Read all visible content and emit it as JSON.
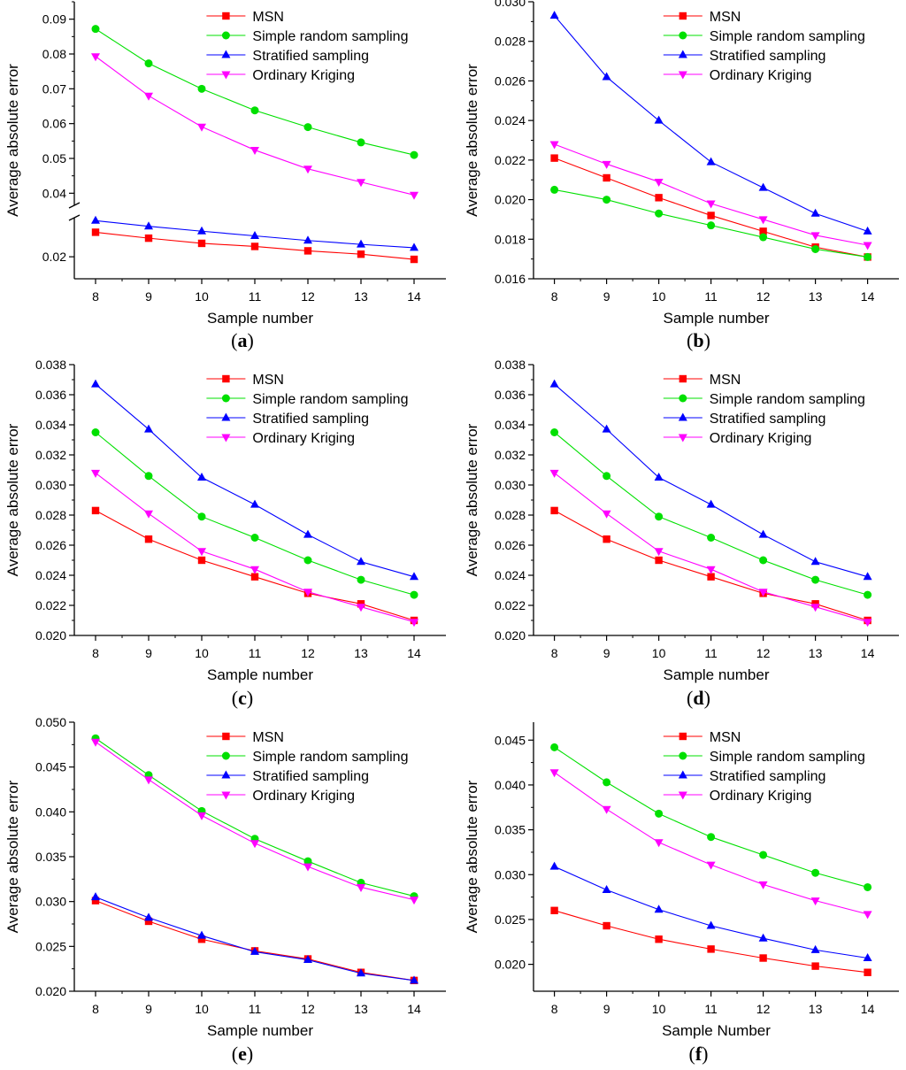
{
  "colors": {
    "MSN": "#ff0000",
    "Simple random sampling": "#00e000",
    "Stratified sampling": "#0000ff",
    "Ordinary Kriging": "#ff00ff",
    "axis": "#000000"
  },
  "chart_data": [
    {
      "type": "line",
      "caption": "a",
      "xlabel": "Sample number",
      "ylabel": "Average absolute error",
      "x": [
        8,
        9,
        10,
        11,
        12,
        13,
        14
      ],
      "yticks_lower": [
        "0.02"
      ],
      "yticks_upper": [
        "0.04",
        "0.05",
        "0.06",
        "0.07",
        "0.08",
        "0.09"
      ],
      "broken_axis": true,
      "series": [
        {
          "name": "MSN",
          "marker": "square",
          "values": [
            0.0295,
            0.0272,
            0.0252,
            0.024,
            0.0223,
            0.021,
            0.019
          ]
        },
        {
          "name": "Simple random sampling",
          "marker": "circle",
          "values": [
            0.0872,
            0.0773,
            0.07,
            0.0638,
            0.059,
            0.0546,
            0.051
          ]
        },
        {
          "name": "Stratified sampling",
          "marker": "triangle-up",
          "values": [
            0.034,
            0.0318,
            0.0299,
            0.0281,
            0.0263,
            0.0248,
            0.0235
          ]
        },
        {
          "name": "Ordinary Kriging",
          "marker": "triangle-down",
          "values": [
            0.0793,
            0.068,
            0.0591,
            0.0524,
            0.047,
            0.0432,
            0.0395
          ]
        }
      ]
    },
    {
      "type": "line",
      "caption": "b",
      "xlabel": "Sample number",
      "ylabel": "Average absolute error",
      "x": [
        8,
        9,
        10,
        11,
        12,
        13,
        14
      ],
      "ylim": [
        0.016,
        0.03
      ],
      "yticks": [
        "0.016",
        "0.018",
        "0.020",
        "0.022",
        "0.024",
        "0.026",
        "0.028",
        "0.030"
      ],
      "series": [
        {
          "name": "MSN",
          "marker": "square",
          "values": [
            0.0221,
            0.0211,
            0.0201,
            0.0192,
            0.0184,
            0.0176,
            0.0171
          ]
        },
        {
          "name": "Simple random sampling",
          "marker": "circle",
          "values": [
            0.0205,
            0.02,
            0.0193,
            0.0187,
            0.0181,
            0.0175,
            0.0171
          ]
        },
        {
          "name": "Stratified sampling",
          "marker": "triangle-up",
          "values": [
            0.0293,
            0.0262,
            0.024,
            0.0219,
            0.0206,
            0.0193,
            0.0184
          ]
        },
        {
          "name": "Ordinary Kriging",
          "marker": "triangle-down",
          "values": [
            0.0228,
            0.0218,
            0.0209,
            0.0198,
            0.019,
            0.0182,
            0.0177
          ]
        }
      ]
    },
    {
      "type": "line",
      "caption": "c",
      "xlabel": "Sample number",
      "ylabel": "Average absolute error",
      "x": [
        8,
        9,
        10,
        11,
        12,
        13,
        14
      ],
      "ylim": [
        0.02,
        0.038
      ],
      "yticks": [
        "0.020",
        "0.022",
        "0.024",
        "0.026",
        "0.028",
        "0.030",
        "0.032",
        "0.034",
        "0.036",
        "0.038"
      ],
      "series": [
        {
          "name": "MSN",
          "marker": "square",
          "values": [
            0.0283,
            0.0264,
            0.025,
            0.0239,
            0.0228,
            0.0221,
            0.021
          ]
        },
        {
          "name": "Simple random sampling",
          "marker": "circle",
          "values": [
            0.0335,
            0.0306,
            0.0279,
            0.0265,
            0.025,
            0.0237,
            0.0227
          ]
        },
        {
          "name": "Stratified sampling",
          "marker": "triangle-up",
          "values": [
            0.0367,
            0.0337,
            0.0305,
            0.0287,
            0.0267,
            0.0249,
            0.0239
          ]
        },
        {
          "name": "Ordinary Kriging",
          "marker": "triangle-down",
          "values": [
            0.0308,
            0.0281,
            0.0256,
            0.0244,
            0.0229,
            0.0219,
            0.0209
          ]
        }
      ]
    },
    {
      "type": "line",
      "caption": "d",
      "xlabel": "Sample number",
      "ylabel": "Average absolute error",
      "x": [
        8,
        9,
        10,
        11,
        12,
        13,
        14
      ],
      "ylim": [
        0.02,
        0.038
      ],
      "yticks": [
        "0.020",
        "0.022",
        "0.024",
        "0.026",
        "0.028",
        "0.030",
        "0.032",
        "0.034",
        "0.036",
        "0.038"
      ],
      "series": [
        {
          "name": "MSN",
          "marker": "square",
          "values": [
            0.0283,
            0.0264,
            0.025,
            0.0239,
            0.0228,
            0.0221,
            0.021
          ]
        },
        {
          "name": "Simple random sampling",
          "marker": "circle",
          "values": [
            0.0335,
            0.0306,
            0.0279,
            0.0265,
            0.025,
            0.0237,
            0.0227
          ]
        },
        {
          "name": "Stratified sampling",
          "marker": "triangle-up",
          "values": [
            0.0367,
            0.0337,
            0.0305,
            0.0287,
            0.0267,
            0.0249,
            0.0239
          ]
        },
        {
          "name": "Ordinary Kriging",
          "marker": "triangle-down",
          "values": [
            0.0308,
            0.0281,
            0.0256,
            0.0244,
            0.0229,
            0.0219,
            0.0209
          ]
        }
      ]
    },
    {
      "type": "line",
      "caption": "e",
      "xlabel": "Sample number",
      "ylabel": "Average absolute error",
      "x": [
        8,
        9,
        10,
        11,
        12,
        13,
        14
      ],
      "ylim": [
        0.02,
        0.05
      ],
      "yticks": [
        "0.020",
        "0.025",
        "0.030",
        "0.035",
        "0.040",
        "0.045",
        "0.050"
      ],
      "series": [
        {
          "name": "MSN",
          "marker": "square",
          "values": [
            0.0301,
            0.0278,
            0.0258,
            0.0245,
            0.0236,
            0.0221,
            0.0212
          ]
        },
        {
          "name": "Simple random sampling",
          "marker": "circle",
          "values": [
            0.0482,
            0.0441,
            0.0401,
            0.037,
            0.0345,
            0.0321,
            0.0306
          ]
        },
        {
          "name": "Stratified sampling",
          "marker": "triangle-up",
          "values": [
            0.0305,
            0.0282,
            0.0262,
            0.0244,
            0.0235,
            0.022,
            0.0212
          ]
        },
        {
          "name": "Ordinary Kriging",
          "marker": "triangle-down",
          "values": [
            0.0478,
            0.0436,
            0.0396,
            0.0365,
            0.0339,
            0.0316,
            0.0302
          ]
        }
      ]
    },
    {
      "type": "line",
      "caption": "f",
      "xlabel": "Sample Number",
      "ylabel": "Average absolute error",
      "x": [
        8,
        9,
        10,
        11,
        12,
        13,
        14
      ],
      "ylim": [
        0.017,
        0.047
      ],
      "yticks": [
        "0.020",
        "0.025",
        "0.030",
        "0.035",
        "0.040",
        "0.045"
      ],
      "series": [
        {
          "name": "MSN",
          "marker": "square",
          "values": [
            0.026,
            0.0243,
            0.0228,
            0.0217,
            0.0207,
            0.0198,
            0.0191
          ]
        },
        {
          "name": "Simple random sampling",
          "marker": "circle",
          "values": [
            0.0442,
            0.0403,
            0.0368,
            0.0342,
            0.0322,
            0.0302,
            0.0286
          ]
        },
        {
          "name": "Stratified sampling",
          "marker": "triangle-up",
          "values": [
            0.0309,
            0.0283,
            0.0261,
            0.0243,
            0.0229,
            0.0216,
            0.0207
          ]
        },
        {
          "name": "Ordinary Kriging",
          "marker": "triangle-down",
          "values": [
            0.0414,
            0.0373,
            0.0336,
            0.0311,
            0.0289,
            0.0271,
            0.0256
          ]
        }
      ]
    }
  ]
}
